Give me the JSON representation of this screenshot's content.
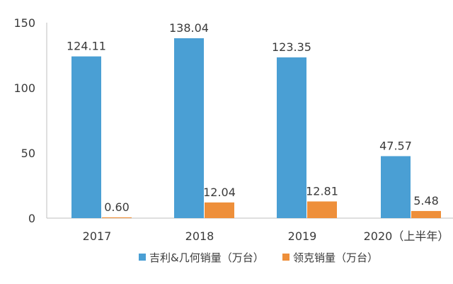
{
  "chart_data": {
    "type": "bar",
    "categories": [
      "2017",
      "2018",
      "2019",
      "2020（上半年）"
    ],
    "series": [
      {
        "name": "吉利&几何销量（万台）",
        "values": [
          124.11,
          138.04,
          123.35,
          47.57
        ],
        "labels": [
          "124.11",
          "138.04",
          "123.35",
          "47.57"
        ],
        "color": "#4a9fd4"
      },
      {
        "name": "领克销量（万台）",
        "values": [
          0.6,
          12.04,
          12.81,
          5.48
        ],
        "labels": [
          "0.60",
          "12.04",
          "12.81",
          "5.48"
        ],
        "color": "#ee8f3a"
      }
    ],
    "yticks": [
      "0",
      "50",
      "100",
      "150"
    ],
    "ylim": [
      0,
      150
    ],
    "grid": false,
    "legend_position": "bottom"
  }
}
